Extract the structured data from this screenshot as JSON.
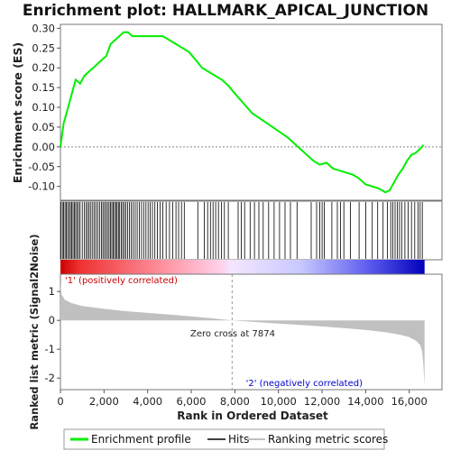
{
  "chart_data": {
    "type": "line",
    "title": "Enrichment plot: HALLMARK_APICAL_JUNCTION",
    "xlabel": "Rank in Ordered Dataset",
    "x_ticks": [
      "0",
      "2,000",
      "4,000",
      "6,000",
      "8,000",
      "10,000",
      "12,000",
      "14,000",
      "16,000"
    ],
    "xlim": [
      0,
      17500
    ],
    "n_genes": 16700,
    "top_panel": {
      "ylabel": "Enrichment score (ES)",
      "ylim": [
        -0.135,
        0.31
      ],
      "y_ticks": [
        "-0.10",
        "-0.05",
        "0.00",
        "0.05",
        "0.10",
        "0.15",
        "0.20",
        "0.25",
        "0.30"
      ],
      "series_name": "Enrichment profile",
      "color": "#00ee00",
      "x": [
        0,
        150,
        300,
        500,
        700,
        900,
        1100,
        1300,
        1500,
        1700,
        1900,
        2100,
        2300,
        2500,
        2700,
        2900,
        3100,
        3300,
        3500,
        3800,
        4100,
        4400,
        4700,
        5000,
        5300,
        5600,
        5900,
        6200,
        6500,
        6800,
        7100,
        7400,
        7700,
        8000,
        8400,
        8800,
        9200,
        9600,
        10000,
        10400,
        10800,
        11200,
        11600,
        11900,
        12200,
        12500,
        12800,
        13100,
        13400,
        13700,
        14000,
        14300,
        14600,
        14900,
        15100,
        15300,
        15500,
        15700,
        15900,
        16100,
        16300,
        16500,
        16650
      ],
      "values": [
        0.0,
        0.06,
        0.09,
        0.13,
        0.17,
        0.16,
        0.18,
        0.19,
        0.2,
        0.21,
        0.22,
        0.23,
        0.26,
        0.27,
        0.28,
        0.29,
        0.29,
        0.28,
        0.28,
        0.28,
        0.28,
        0.28,
        0.28,
        0.27,
        0.26,
        0.25,
        0.24,
        0.22,
        0.2,
        0.19,
        0.18,
        0.17,
        0.155,
        0.135,
        0.11,
        0.085,
        0.07,
        0.055,
        0.04,
        0.025,
        0.005,
        -0.015,
        -0.035,
        -0.045,
        -0.04,
        -0.055,
        -0.06,
        -0.065,
        -0.07,
        -0.08,
        -0.095,
        -0.1,
        -0.105,
        -0.115,
        -0.11,
        -0.09,
        -0.07,
        -0.055,
        -0.035,
        -0.02,
        -0.015,
        -0.005,
        0.005
      ]
    },
    "hits": [
      20,
      90,
      150,
      210,
      270,
      330,
      400,
      460,
      520,
      580,
      640,
      700,
      760,
      830,
      900,
      1000,
      1100,
      1180,
      1250,
      1320,
      1400,
      1480,
      1560,
      1640,
      1720,
      1800,
      1880,
      1950,
      2020,
      2090,
      2160,
      2230,
      2300,
      2360,
      2420,
      2480,
      2540,
      2600,
      2660,
      2720,
      2790,
      2860,
      2930,
      3000,
      3080,
      3160,
      3250,
      3340,
      3430,
      3520,
      3620,
      3720,
      3820,
      3920,
      4020,
      4120,
      4220,
      4330,
      4450,
      4570,
      4700,
      4850,
      5000,
      5150,
      5300,
      5420,
      5550,
      5680,
      6300,
      6600,
      6750,
      6880,
      7000,
      7120,
      7250,
      7380,
      7520,
      7700,
      8150,
      8300,
      8450,
      8700,
      8900,
      9100,
      9300,
      9550,
      9800,
      10050,
      10300,
      10550,
      10850,
      11500,
      11750,
      11900,
      12000,
      12100,
      12450,
      12700,
      12850,
      13000,
      13300,
      13700,
      14000,
      14300,
      14550,
      14800,
      15000,
      15150,
      15250,
      15350,
      15450,
      15550,
      15650,
      15800,
      15950,
      16100,
      16250,
      16400,
      16500,
      16600
    ],
    "ranked_list": {
      "ylabel": "Ranked list metric (Signal2Noise)",
      "ylim": [
        -2.4,
        1.6
      ],
      "y_ticks": [
        "-2",
        "-1",
        "0",
        "1"
      ],
      "series_name": "Ranking metric scores",
      "x": [
        0,
        50,
        200,
        500,
        1000,
        2000,
        3000,
        4000,
        5000,
        6000,
        7000,
        7874,
        9000,
        10000,
        11000,
        12000,
        13000,
        14000,
        15000,
        15600,
        16000,
        16300,
        16500,
        16600,
        16650,
        16700
      ],
      "values": [
        1.3,
        0.9,
        0.72,
        0.6,
        0.5,
        0.4,
        0.32,
        0.26,
        0.2,
        0.14,
        0.07,
        0.0,
        -0.06,
        -0.11,
        -0.16,
        -0.21,
        -0.27,
        -0.33,
        -0.42,
        -0.5,
        -0.58,
        -0.7,
        -0.85,
        -1.1,
        -1.6,
        -2.3
      ]
    },
    "annotations": {
      "zero_cross": "Zero cross at 7874",
      "zero_cross_rank": 7874,
      "pos_label": "'1' (positively correlated)",
      "neg_label": "'2' (negatively correlated)",
      "pos_color": "#cc0000",
      "neg_color": "#0000cc"
    },
    "legend": {
      "position": "bottom",
      "items": [
        {
          "label": "Enrichment profile",
          "color": "#00ee00"
        },
        {
          "label": "Hits",
          "color": "#000000"
        },
        {
          "label": "Ranking metric scores",
          "color": "#c0c0c0"
        }
      ]
    },
    "grid": false
  }
}
